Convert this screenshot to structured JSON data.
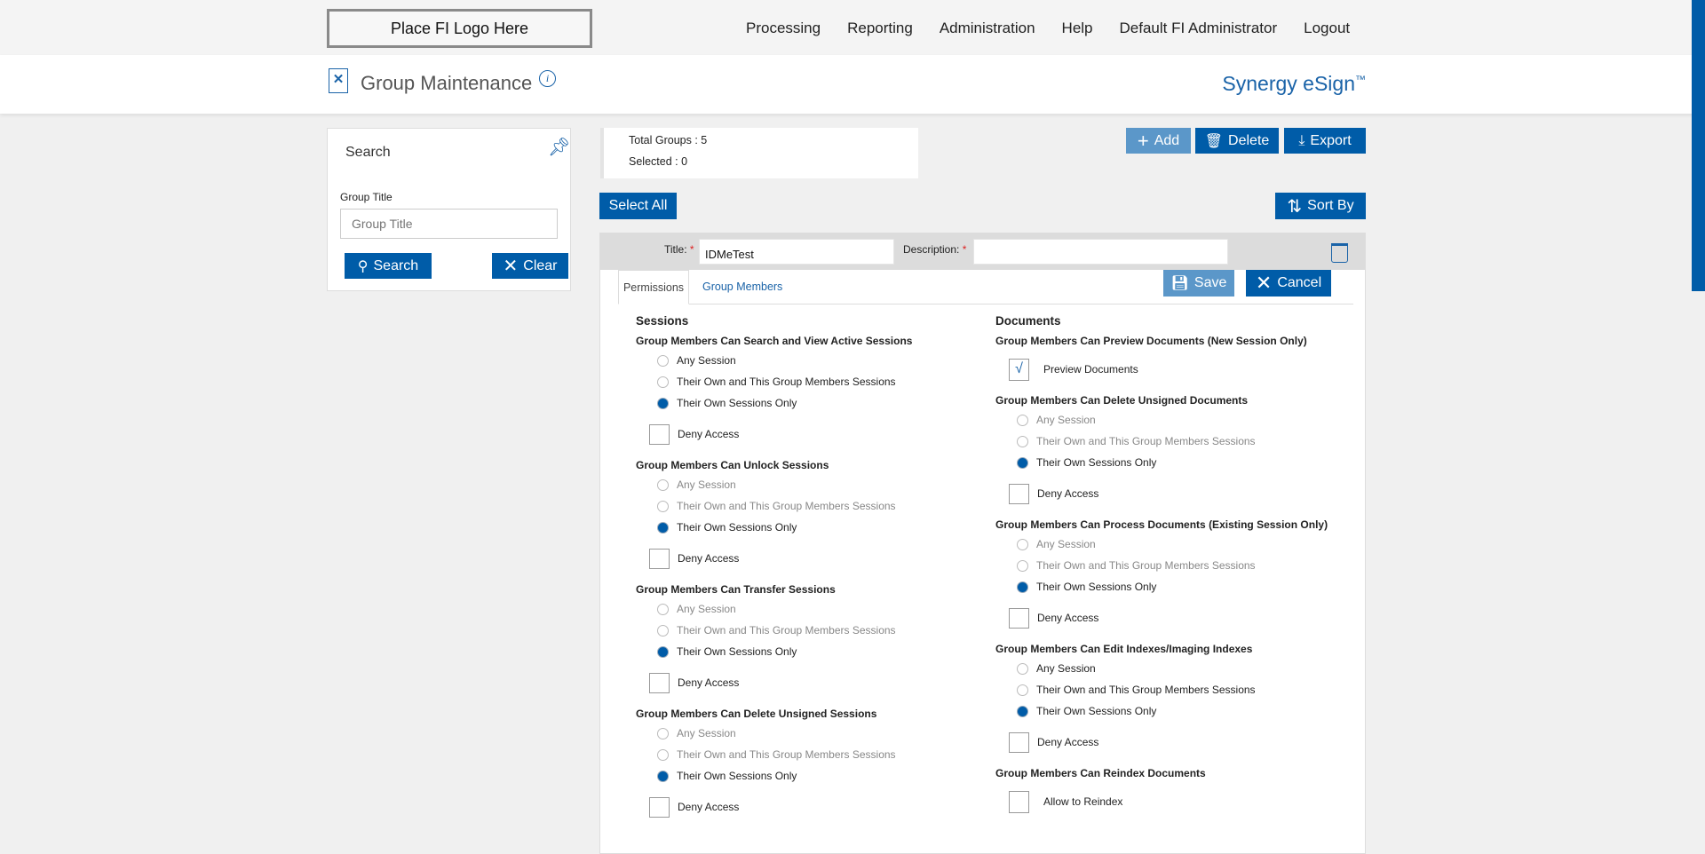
{
  "topbar": {
    "logo": "Place FI Logo Here",
    "nav": [
      "Processing",
      "Reporting",
      "Administration",
      "Help",
      "Default FI Administrator",
      "Logout"
    ]
  },
  "header": {
    "title": "Group Maintenance",
    "brand": "Synergy eSign",
    "trademark": "™"
  },
  "search": {
    "title": "Search",
    "field_label": "Group Title",
    "placeholder": "Group Title",
    "search_label": "Search",
    "clear_label": "Clear"
  },
  "stats": {
    "total": "Total Groups : 5",
    "selected": "Selected : 0"
  },
  "toolbar": {
    "add": "Add",
    "delete": "Delete",
    "export": "Export",
    "select_all": "Select All",
    "sort_by": "Sort By"
  },
  "group": {
    "title_label": "Title:",
    "title_value": "IDMeTest",
    "description_label": "Description:",
    "description_value": "",
    "required": "*",
    "tabs": [
      "Permissions",
      "Group Members"
    ],
    "save": "Save",
    "cancel": "Cancel"
  },
  "sessions": {
    "heading": "Sessions",
    "groups": [
      {
        "title": "Group Members Can Search and View Active Sessions",
        "disabled": false,
        "options": [
          "Any Session",
          "Their Own and This Group Members Sessions",
          "Their Own Sessions Only"
        ],
        "selected": 2,
        "deny": "Deny Access",
        "deny_checked": false
      },
      {
        "title": "Group Members Can Unlock Sessions",
        "disabled": true,
        "options": [
          "Any Session",
          "Their Own and This Group Members Sessions",
          "Their Own Sessions Only"
        ],
        "selected": 2,
        "deny": "Deny Access",
        "deny_checked": false
      },
      {
        "title": "Group Members Can Transfer Sessions",
        "disabled": true,
        "options": [
          "Any Session",
          "Their Own and This Group Members Sessions",
          "Their Own Sessions Only"
        ],
        "selected": 2,
        "deny": "Deny Access",
        "deny_checked": false
      },
      {
        "title": "Group Members Can Delete Unsigned Sessions",
        "disabled": true,
        "options": [
          "Any Session",
          "Their Own and This Group Members Sessions",
          "Their Own Sessions Only"
        ],
        "selected": 2,
        "deny": "Deny Access",
        "deny_checked": false
      }
    ]
  },
  "documents": {
    "heading": "Documents",
    "preview": {
      "title": "Group Members Can Preview Documents (New Session Only)",
      "label": "Preview Documents",
      "checked": true
    },
    "groups": [
      {
        "title": "Group Members Can Delete Unsigned Documents",
        "disabled": true,
        "options": [
          "Any Session",
          "Their Own and This Group Members Sessions",
          "Their Own Sessions Only"
        ],
        "selected": 2,
        "deny": "Deny Access",
        "deny_checked": false
      },
      {
        "title": "Group Members Can Process Documents (Existing Session Only)",
        "disabled": true,
        "options": [
          "Any Session",
          "Their Own and This Group Members Sessions",
          "Their Own Sessions Only"
        ],
        "selected": 2,
        "deny": "Deny Access",
        "deny_checked": false
      },
      {
        "title": "Group Members Can Edit Indexes/Imaging Indexes",
        "disabled": false,
        "options": [
          "Any Session",
          "Their Own and This Group Members Sessions",
          "Their Own Sessions Only"
        ],
        "selected": 2,
        "deny": "Deny Access",
        "deny_checked": false
      }
    ],
    "reindex": {
      "title": "Group Members Can Reindex Documents",
      "label": "Allow to Reindex",
      "checked": false
    }
  },
  "colors": {
    "primary": "#005ca8",
    "primary_light": "#5b97c9",
    "brand_text": "#1a63a8"
  }
}
